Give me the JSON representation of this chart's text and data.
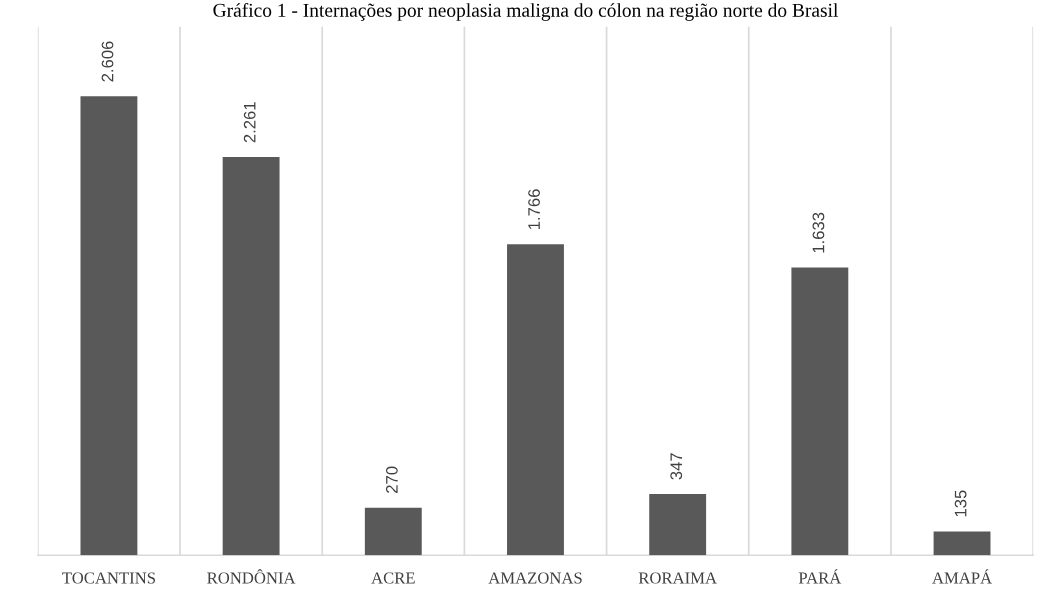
{
  "chart_data": {
    "type": "bar",
    "title": "Gráfico 1 - Internações por neoplasia maligna do cólon na região norte do Brasil",
    "categories": [
      "TOCANTINS",
      "RONDÔNIA",
      "ACRE",
      "AMAZONAS",
      "RORAIMA",
      "PARÁ",
      "AMAPÁ"
    ],
    "values": [
      2606,
      2261,
      270,
      1766,
      347,
      1633,
      135
    ],
    "value_labels": [
      "2.606",
      "2.261",
      "270",
      "1.766",
      "347",
      "1.633",
      "135"
    ],
    "color": "#595959",
    "ylim": [
      0,
      3000
    ],
    "tick_labels": "x",
    "grid": "x",
    "legend": false
  }
}
